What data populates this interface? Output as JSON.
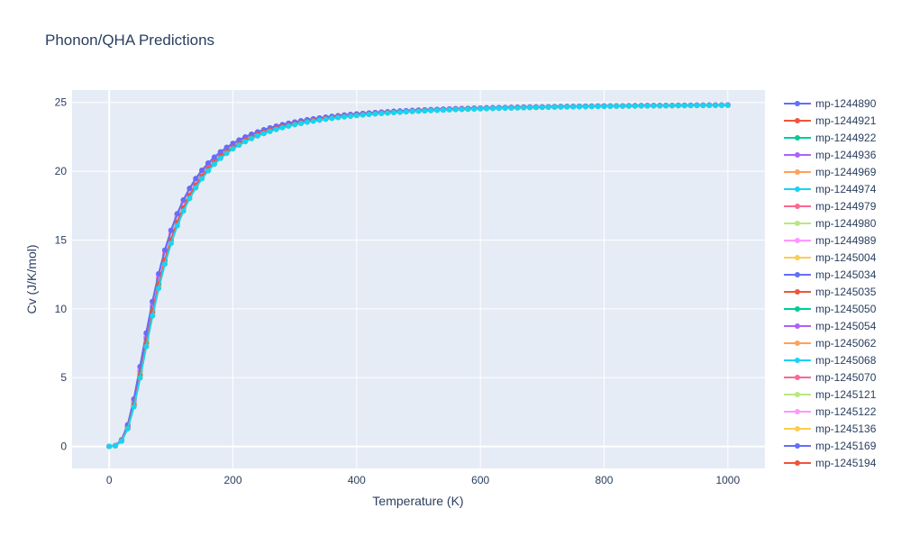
{
  "chart_data": {
    "type": "line",
    "title": "Phonon/QHA Predictions",
    "xlabel": "Temperature (K)",
    "ylabel": "Cv (J/K/mol)",
    "xlim": [
      -60,
      1060
    ],
    "ylim": [
      -1.6,
      25.9
    ],
    "xticks": [
      0,
      200,
      400,
      600,
      800,
      1000
    ],
    "yticks": [
      0,
      5,
      10,
      15,
      20,
      25
    ],
    "grid": true,
    "legend_position": "right",
    "x": [
      0,
      10,
      20,
      30,
      40,
      50,
      60,
      70,
      80,
      90,
      100,
      110,
      120,
      130,
      140,
      150,
      160,
      170,
      180,
      190,
      200,
      210,
      220,
      230,
      240,
      250,
      260,
      270,
      280,
      290,
      300,
      310,
      320,
      330,
      340,
      350,
      360,
      370,
      380,
      390,
      400,
      410,
      420,
      430,
      440,
      450,
      460,
      470,
      480,
      490,
      500,
      510,
      520,
      530,
      540,
      550,
      560,
      570,
      580,
      590,
      600,
      610,
      620,
      630,
      640,
      650,
      660,
      670,
      680,
      690,
      700,
      710,
      720,
      730,
      740,
      750,
      760,
      770,
      780,
      790,
      800,
      810,
      820,
      830,
      840,
      850,
      860,
      870,
      880,
      890,
      900,
      910,
      920,
      930,
      940,
      950,
      960,
      970,
      980,
      990,
      1000
    ],
    "series": [
      {
        "name": "mp-1244890",
        "color": "#636efa",
        "t_scale": 0.98
      },
      {
        "name": "mp-1244921",
        "color": "#EF553B",
        "t_scale": 1.02
      },
      {
        "name": "mp-1244922",
        "color": "#00cc96",
        "t_scale": 1.0
      },
      {
        "name": "mp-1244936",
        "color": "#ab63fa",
        "t_scale": 0.97
      },
      {
        "name": "mp-1244969",
        "color": "#FFA15A",
        "t_scale": 1.03
      },
      {
        "name": "mp-1244974",
        "color": "#19d3f3",
        "t_scale": 1.01
      },
      {
        "name": "mp-1244979",
        "color": "#FF6692",
        "t_scale": 0.99
      },
      {
        "name": "mp-1244980",
        "color": "#B6E880",
        "t_scale": 1.02
      },
      {
        "name": "mp-1244989",
        "color": "#FF97FF",
        "t_scale": 0.98
      },
      {
        "name": "mp-1245004",
        "color": "#FECB52",
        "t_scale": 1.04
      },
      {
        "name": "mp-1245034",
        "color": "#636efa",
        "t_scale": 0.97
      },
      {
        "name": "mp-1245035",
        "color": "#EF553B",
        "t_scale": 1.01
      },
      {
        "name": "mp-1245050",
        "color": "#00cc96",
        "t_scale": 1.0
      },
      {
        "name": "mp-1245054",
        "color": "#ab63fa",
        "t_scale": 0.98
      },
      {
        "name": "mp-1245062",
        "color": "#FFA15A",
        "t_scale": 1.03
      },
      {
        "name": "mp-1245068",
        "color": "#19d3f3",
        "t_scale": 1.02
      },
      {
        "name": "mp-1245070",
        "color": "#FF6692",
        "t_scale": 0.99
      },
      {
        "name": "mp-1245121",
        "color": "#B6E880",
        "t_scale": 1.01
      },
      {
        "name": "mp-1245122",
        "color": "#FF97FF",
        "t_scale": 0.98
      },
      {
        "name": "mp-1245136",
        "color": "#FECB52",
        "t_scale": 1.03
      },
      {
        "name": "mp-1245169",
        "color": "#636efa",
        "t_scale": 0.97
      },
      {
        "name": "mp-1245194",
        "color": "#EF553B",
        "t_scale": 1.02
      },
      {
        "name": "",
        "color": "#19d3f3",
        "t_scale": 1.04
      }
    ]
  }
}
